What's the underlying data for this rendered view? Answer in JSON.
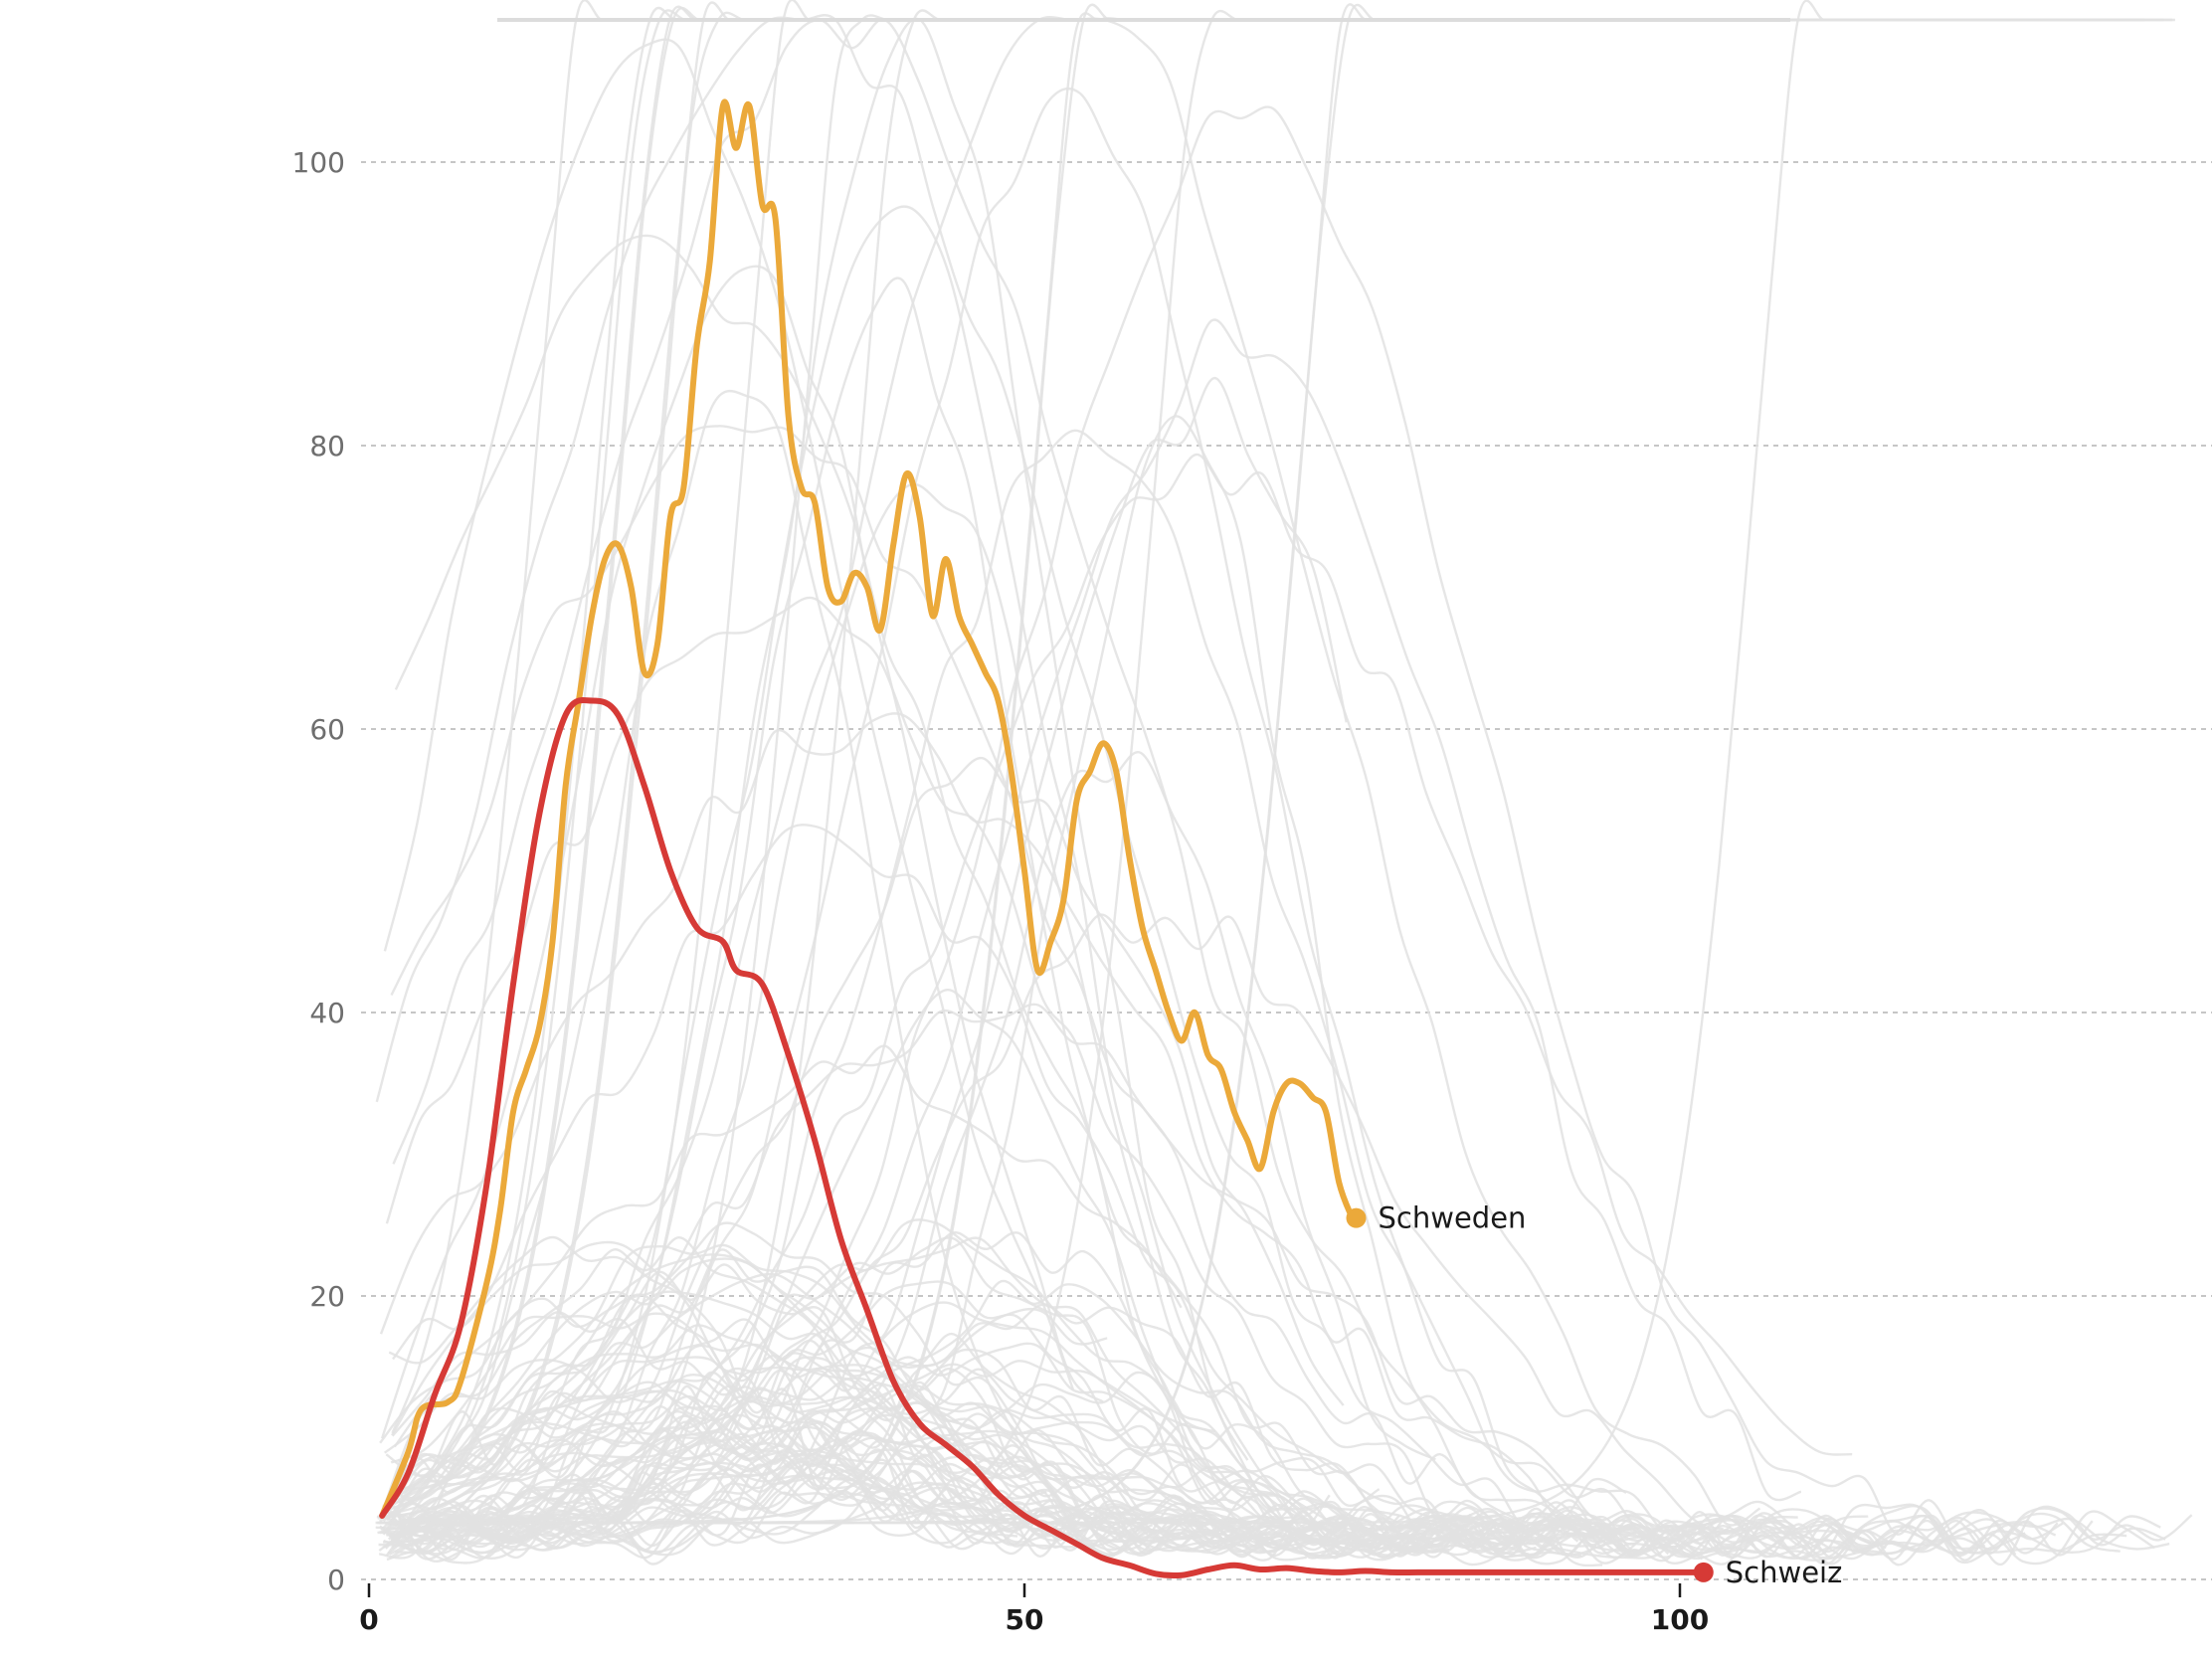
{
  "chart_data": {
    "type": "line",
    "title": "",
    "xlabel": "",
    "ylabel": "",
    "xlim": [
      0,
      140
    ],
    "ylim": [
      0,
      110
    ],
    "x_ticks": [
      0,
      50,
      100
    ],
    "y_ticks": [
      0,
      20,
      40,
      60,
      80,
      100
    ],
    "grid": "horizontal dashed",
    "colors": {
      "highlight_orange": "#EBA93A",
      "highlight_red": "#D63A36",
      "background_lines": "#e2e2e2",
      "grid": "#b4b4b4"
    },
    "series": [
      {
        "name": "Schweden",
        "color": "#EBA93A",
        "points": [
          [
            1,
            4.5
          ],
          [
            3,
            9
          ],
          [
            4,
            12
          ],
          [
            6,
            12.5
          ],
          [
            7,
            14
          ],
          [
            9,
            21
          ],
          [
            10,
            26
          ],
          [
            11,
            33
          ],
          [
            12,
            36
          ],
          [
            13,
            39
          ],
          [
            14,
            45
          ],
          [
            15,
            56
          ],
          [
            16,
            62
          ],
          [
            17,
            68
          ],
          [
            18,
            72
          ],
          [
            19,
            73
          ],
          [
            20,
            70
          ],
          [
            21,
            64
          ],
          [
            22,
            66
          ],
          [
            23,
            75
          ],
          [
            24,
            77
          ],
          [
            25,
            87
          ],
          [
            26,
            93
          ],
          [
            27,
            104
          ],
          [
            28,
            101
          ],
          [
            29,
            104
          ],
          [
            30,
            97
          ],
          [
            31,
            96
          ],
          [
            32,
            82
          ],
          [
            33,
            77
          ],
          [
            34,
            76
          ],
          [
            35,
            70
          ],
          [
            36,
            69
          ],
          [
            37,
            71
          ],
          [
            38,
            70
          ],
          [
            39,
            67
          ],
          [
            40,
            73
          ],
          [
            41,
            78
          ],
          [
            42,
            75
          ],
          [
            43,
            68
          ],
          [
            44,
            72
          ],
          [
            45,
            68
          ],
          [
            46,
            66
          ],
          [
            47,
            64
          ],
          [
            48,
            62
          ],
          [
            49,
            57
          ],
          [
            50,
            50
          ],
          [
            51,
            43
          ],
          [
            52,
            45
          ],
          [
            53,
            48
          ],
          [
            54,
            55
          ],
          [
            55,
            57
          ],
          [
            56,
            59
          ],
          [
            57,
            57
          ],
          [
            58,
            51
          ],
          [
            59,
            46
          ],
          [
            60,
            43
          ],
          [
            61,
            40
          ],
          [
            62,
            38
          ],
          [
            63,
            40
          ],
          [
            64,
            37
          ],
          [
            65,
            36
          ],
          [
            66,
            33
          ],
          [
            67,
            31
          ],
          [
            68,
            29
          ],
          [
            69,
            33
          ],
          [
            70,
            35
          ],
          [
            71,
            35
          ],
          [
            72,
            34
          ],
          [
            73,
            33
          ],
          [
            74,
            28
          ],
          [
            75,
            25.5
          ]
        ]
      },
      {
        "name": "Schweiz",
        "color": "#D63A36",
        "points": [
          [
            1,
            4.5
          ],
          [
            3,
            7.5
          ],
          [
            5,
            13
          ],
          [
            7,
            18
          ],
          [
            9,
            28
          ],
          [
            11,
            42
          ],
          [
            13,
            54
          ],
          [
            15,
            61
          ],
          [
            17,
            62
          ],
          [
            19,
            61
          ],
          [
            21,
            56
          ],
          [
            23,
            50
          ],
          [
            25,
            46
          ],
          [
            27,
            45
          ],
          [
            28,
            43
          ],
          [
            30,
            42
          ],
          [
            32,
            37
          ],
          [
            34,
            31
          ],
          [
            36,
            24
          ],
          [
            38,
            19
          ],
          [
            40,
            14
          ],
          [
            42,
            11
          ],
          [
            44,
            9.5
          ],
          [
            46,
            8
          ],
          [
            48,
            6
          ],
          [
            50,
            4.5
          ],
          [
            52,
            3.5
          ],
          [
            54,
            2.5
          ],
          [
            56,
            1.5
          ],
          [
            58,
            1
          ],
          [
            60,
            0.4
          ],
          [
            62,
            0.3
          ],
          [
            64,
            0.7
          ],
          [
            66,
            1
          ],
          [
            68,
            0.7
          ],
          [
            70,
            0.8
          ],
          [
            72,
            0.6
          ],
          [
            74,
            0.5
          ],
          [
            76,
            0.6
          ],
          [
            78,
            0.5
          ],
          [
            80,
            0.5
          ],
          [
            82,
            0.5
          ],
          [
            84,
            0.5
          ],
          [
            86,
            0.5
          ],
          [
            88,
            0.5
          ],
          [
            90,
            0.5
          ],
          [
            92,
            0.5
          ],
          [
            94,
            0.5
          ],
          [
            96,
            0.5
          ],
          [
            98,
            0.5
          ],
          [
            100,
            0.5
          ],
          [
            101.5,
            0.5
          ]
        ]
      }
    ]
  }
}
